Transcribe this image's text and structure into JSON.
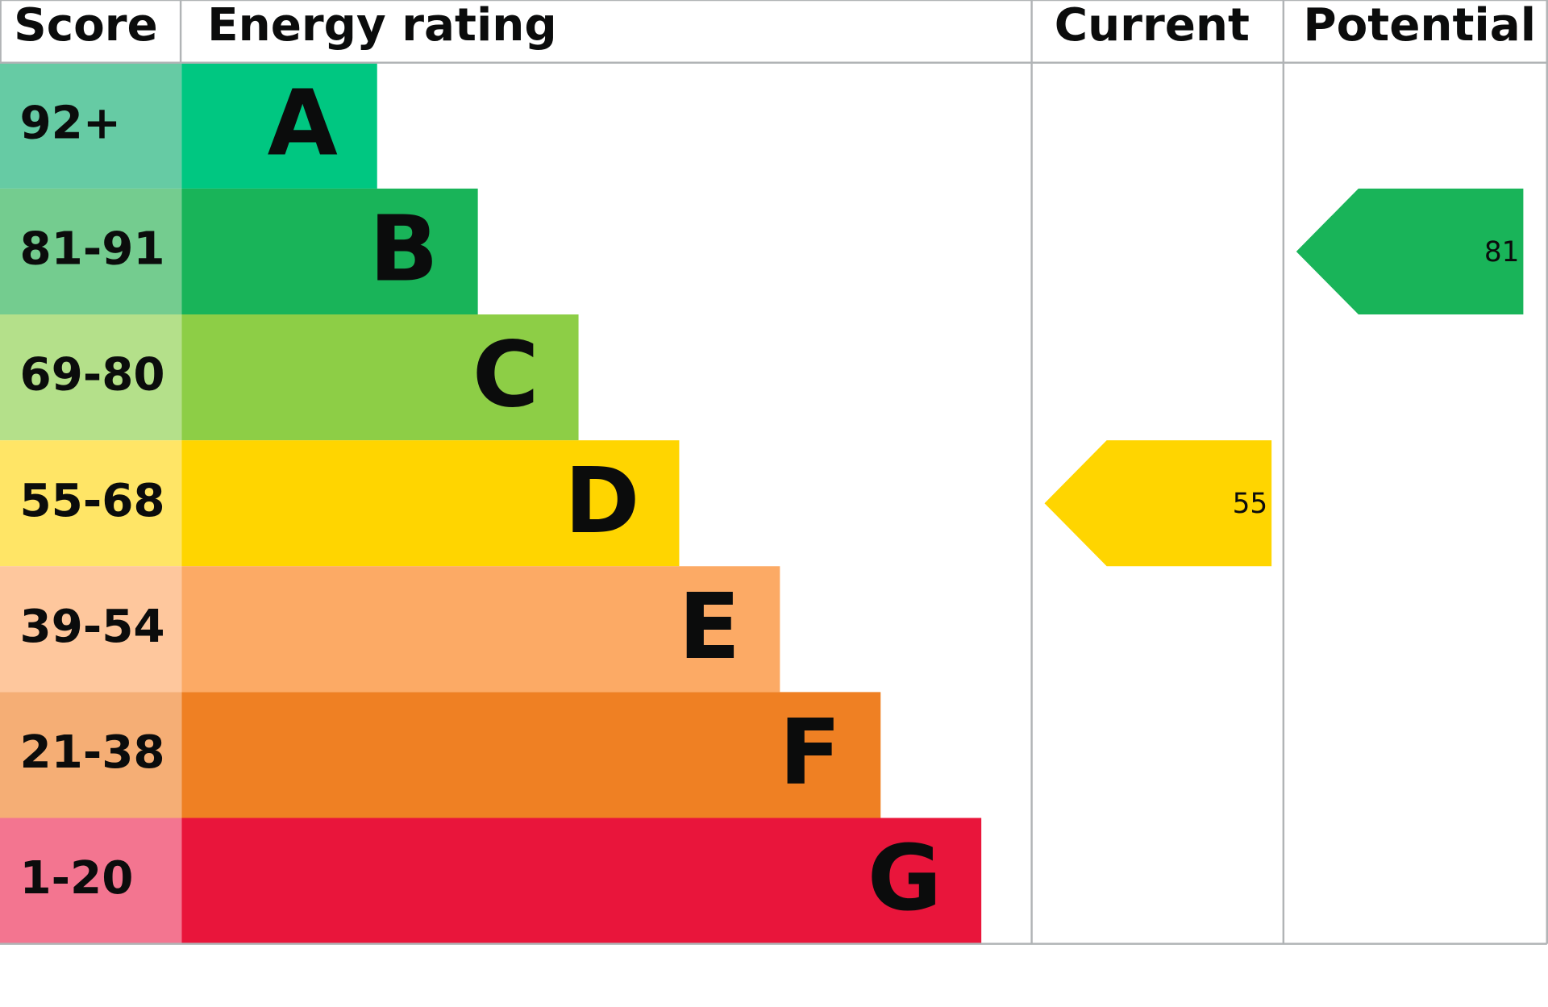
{
  "headers": {
    "score": "Score",
    "rating": "Energy rating",
    "current": "Current",
    "potential": "Potential"
  },
  "bands": [
    {
      "score": "92+",
      "rating": "A",
      "color": "#00c781",
      "score_color": "#66cba4"
    },
    {
      "score": "81-91",
      "rating": "B",
      "color": "#19b459",
      "score_color": "#74cc8f"
    },
    {
      "score": "69-80",
      "rating": "C",
      "color": "#8dce46",
      "score_color": "#b4e08a"
    },
    {
      "score": "55-68",
      "rating": "D",
      "color": "#ffd500",
      "score_color": "#ffe566"
    },
    {
      "score": "39-54",
      "rating": "E",
      "color": "#fcaa65",
      "score_color": "#fec79d"
    },
    {
      "score": "21-38",
      "rating": "F",
      "color": "#ef8023",
      "score_color": "#f5ae75"
    },
    {
      "score": "1-20",
      "rating": "G",
      "color": "#e9153b",
      "score_color": "#f37590"
    }
  ],
  "current": {
    "value": 55,
    "color": "#ffd500"
  },
  "potential": {
    "value": 81,
    "color": "#19b459"
  }
}
